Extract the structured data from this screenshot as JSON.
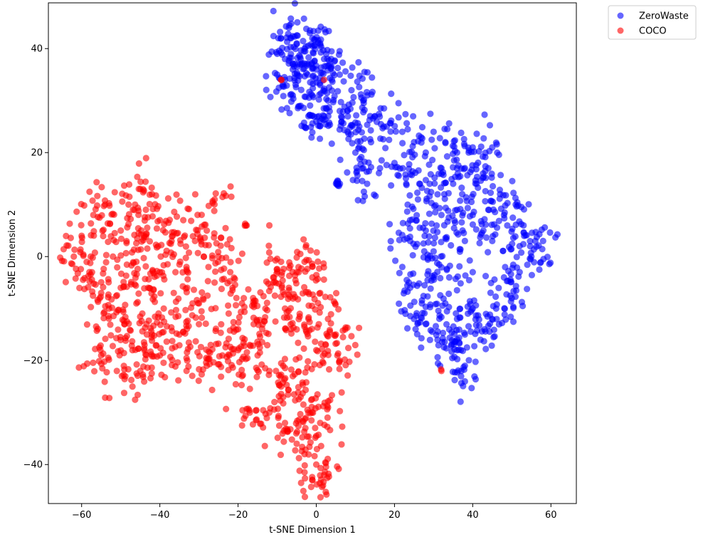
{
  "chart_data": {
    "type": "scatter",
    "title": "",
    "xlabel": "t-SNE Dimension 1",
    "ylabel": "t-SNE Dimension 2",
    "xlim": [
      -68.5,
      66.5
    ],
    "ylim": [
      -47.5,
      48.8
    ],
    "xticks": [
      -60,
      -40,
      -20,
      0,
      20,
      40,
      60
    ],
    "yticks": [
      -40,
      -20,
      0,
      20,
      40
    ],
    "grid": false,
    "legend_position": "outside top-right",
    "point_alpha": 0.6,
    "series": [
      {
        "name": "ZeroWaste",
        "color": "#0000ff",
        "clusters": [
          {
            "points": [
              [
                -10,
                39
              ],
              [
                -9,
                42
              ],
              [
                -7,
                44
              ],
              [
                -5,
                41
              ],
              [
                -3,
                40
              ],
              [
                -1,
                42
              ],
              [
                1,
                41
              ],
              [
                -8,
                38
              ],
              [
                -6,
                36
              ],
              [
                -4,
                38
              ],
              [
                -2,
                37
              ],
              [
                0,
                36
              ],
              [
                2,
                38
              ]
            ],
            "count": 130,
            "spread": [
              2.6,
              2.2
            ],
            "seed": 11
          },
          {
            "points": [
              [
                -8,
                34
              ],
              [
                -6,
                31
              ],
              [
                -4,
                29
              ],
              [
                -2,
                27
              ],
              [
                0,
                26
              ],
              [
                -1,
                31
              ],
              [
                1,
                33
              ],
              [
                3,
                30
              ],
              [
                2,
                27
              ],
              [
                4,
                34
              ]
            ],
            "count": 90,
            "spread": [
              2.2,
              2.2
            ],
            "seed": 12
          },
          {
            "points": [
              [
                6,
                35
              ],
              [
                9,
                32
              ],
              [
                12,
                30
              ],
              [
                15,
                27
              ],
              [
                18,
                25
              ],
              [
                8,
                28
              ],
              [
                11,
                25
              ],
              [
                14,
                22
              ],
              [
                10,
                20
              ],
              [
                12,
                17
              ],
              [
                13,
                14
              ],
              [
                6,
                28
              ],
              [
                8,
                24
              ]
            ],
            "count": 120,
            "spread": [
              2.8,
              2.5
            ],
            "seed": 13
          },
          {
            "points": [
              [
                22,
                24
              ],
              [
                25,
                22
              ],
              [
                28,
                20
              ],
              [
                30,
                24
              ],
              [
                33,
                22
              ],
              [
                36,
                20
              ],
              [
                20,
                18
              ],
              [
                23,
                14
              ],
              [
                26,
                11
              ],
              [
                29,
                14
              ],
              [
                32,
                17
              ],
              [
                35,
                14
              ],
              [
                38,
                17
              ],
              [
                41,
                14
              ],
              [
                44,
                17
              ],
              [
                47,
                12
              ],
              [
                24,
                7
              ],
              [
                28,
                5
              ],
              [
                32,
                8
              ],
              [
                36,
                9
              ],
              [
                40,
                8
              ],
              [
                44,
                9
              ],
              [
                48,
                8
              ],
              [
                51,
                10
              ],
              [
                53,
                6
              ],
              [
                56,
                3
              ],
              [
                58,
                3
              ],
              [
                52,
                2
              ],
              [
                45,
                3
              ],
              [
                38,
                3
              ],
              [
                30,
                1
              ],
              [
                24,
                3
              ],
              [
                40,
                21
              ],
              [
                45,
                21
              ]
            ],
            "count": 320,
            "spread": [
              2.9,
              2.5
            ],
            "seed": 14
          },
          {
            "points": [
              [
                22,
                -2
              ],
              [
                24,
                -6
              ],
              [
                27,
                -9
              ],
              [
                30,
                -4
              ],
              [
                34,
                -4
              ],
              [
                33,
                -9
              ],
              [
                36,
                -12
              ],
              [
                40,
                -10
              ],
              [
                43,
                -14
              ],
              [
                46,
                -10
              ],
              [
                48,
                -4
              ],
              [
                52,
                -3
              ],
              [
                55,
                0
              ],
              [
                28,
                -13
              ],
              [
                31,
                -16
              ],
              [
                34,
                -14
              ],
              [
                38,
                -15
              ],
              [
                42,
                -16
              ],
              [
                36,
                -18
              ],
              [
                38,
                -21
              ],
              [
                38,
                -24
              ],
              [
                45,
                -12
              ],
              [
                50,
                -8
              ],
              [
                25,
                -12
              ],
              [
                40,
                -3
              ]
            ],
            "count": 230,
            "spread": [
              2.3,
              2.1
            ],
            "seed": 15
          },
          {
            "points": [
              [
                5.5,
                14
              ],
              [
                5.8,
                13.6
              ],
              [
                5.2,
                14.3
              ],
              [
                -10,
                35
              ]
            ],
            "count": 8,
            "spread": [
              0.3,
              0.3
            ],
            "seed": 16
          }
        ]
      },
      {
        "name": "COCO",
        "color": "#ff0000",
        "clusters": [
          {
            "points": [
              [
                -62,
                0
              ],
              [
                -60,
                4
              ],
              [
                -57,
                8
              ],
              [
                -54,
                10
              ],
              [
                -58,
                -3
              ],
              [
                -55,
                -7
              ],
              [
                -52,
                0
              ],
              [
                -50,
                5
              ],
              [
                -48,
                10
              ],
              [
                -45,
                13
              ],
              [
                -42,
                12
              ],
              [
                -40,
                7
              ],
              [
                -44,
                4
              ],
              [
                -46,
                -1
              ],
              [
                -50,
                -6
              ],
              [
                -53,
                -10
              ],
              [
                -49,
                -13
              ],
              [
                -46,
                -9
              ],
              [
                -43,
                -6
              ],
              [
                -40,
                -3
              ],
              [
                -37,
                3
              ],
              [
                -34,
                7
              ],
              [
                -31,
                3
              ],
              [
                -28,
                5
              ],
              [
                -25,
                0
              ],
              [
                -22,
                -3
              ],
              [
                -36,
                -3
              ],
              [
                -33,
                -6
              ],
              [
                -30,
                -9
              ],
              [
                -39,
                -10
              ],
              [
                -42,
                -15
              ],
              [
                -47,
                -18
              ],
              [
                -51,
                -22
              ],
              [
                -55,
                -19
              ],
              [
                -45,
                -22
              ],
              [
                -40,
                -19
              ],
              [
                -35,
                -15
              ],
              [
                -30,
                -13
              ],
              [
                -27,
                -17
              ],
              [
                -33,
                -20
              ],
              [
                -28,
                -21
              ],
              [
                -24,
                -19
              ],
              [
                -20,
                -18
              ],
              [
                -47,
                -25
              ],
              [
                -26,
                11
              ]
            ],
            "count": 560,
            "spread": [
              2.7,
              2.5
            ],
            "seed": 21
          },
          {
            "points": [
              [
                -19,
                -9
              ],
              [
                -16,
                -13
              ],
              [
                -13,
                -10
              ],
              [
                -11,
                -4
              ],
              [
                -9,
                -1
              ],
              [
                -7,
                -6
              ],
              [
                -5,
                -3
              ],
              [
                -3,
                -1
              ],
              [
                -1,
                -4
              ],
              [
                1,
                -7
              ],
              [
                -8,
                -10
              ],
              [
                -5,
                -14
              ],
              [
                -2,
                -12
              ],
              [
                0,
                -18
              ],
              [
                3,
                -12
              ],
              [
                5,
                -15
              ],
              [
                6,
                -20
              ],
              [
                -15,
                -19
              ],
              [
                -12,
                -22
              ],
              [
                -9,
                -25
              ],
              [
                -6,
                -23
              ],
              [
                -4,
                -27
              ],
              [
                -2,
                -30
              ],
              [
                1,
                -32
              ],
              [
                3,
                -29
              ],
              [
                -8,
                -32
              ],
              [
                -5,
                -36
              ],
              [
                -3,
                -38
              ],
              [
                0,
                -40
              ],
              [
                2,
                -42
              ],
              [
                -1,
                -43
              ],
              [
                -12,
                -30
              ],
              [
                -17,
                -30
              ],
              [
                -19,
                -23
              ],
              [
                -17,
                -17
              ]
            ],
            "count": 420,
            "spread": [
              2.4,
              2.3
            ],
            "seed": 22
          },
          {
            "points": [
              [
                -12,
                6
              ],
              [
                -18,
                6
              ],
              [
                -9,
                34
              ],
              [
                2,
                34
              ],
              [
                32,
                -22
              ]
            ],
            "count": 5,
            "spread": [
              0.2,
              0.2
            ],
            "seed": 23
          }
        ]
      }
    ]
  }
}
